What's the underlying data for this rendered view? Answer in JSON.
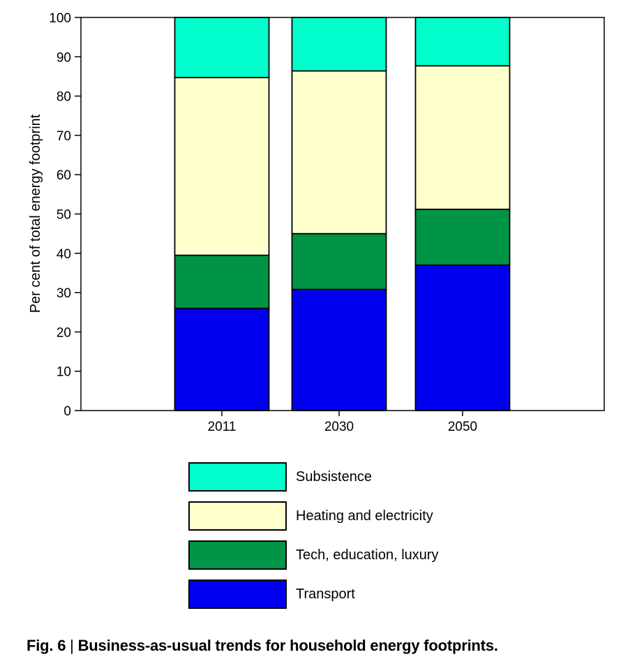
{
  "chart_data": {
    "type": "bar",
    "stacked": true,
    "categories": [
      "2011",
      "2030",
      "2050"
    ],
    "series": [
      {
        "name": "Transport",
        "color": "#0000ee",
        "values": [
          26,
          30.8,
          37
        ]
      },
      {
        "name": "Tech, education, luxury",
        "color": "#009446",
        "values": [
          13.5,
          14.2,
          14.2
        ]
      },
      {
        "name": "Heating and electricity",
        "color": "#ffffcc",
        "values": [
          45.2,
          41.4,
          36.5
        ]
      },
      {
        "name": "Subsistence",
        "color": "#00ffcc",
        "values": [
          15.3,
          13.6,
          12.3
        ]
      }
    ],
    "ylabel": "Per cent of total energy footprint",
    "xlabel": "",
    "ylim": [
      0,
      100
    ],
    "yticks": [
      "0",
      "10",
      "20",
      "30",
      "40",
      "50",
      "60",
      "70",
      "80",
      "90",
      "100"
    ],
    "legend_position": "bottom"
  },
  "legend": {
    "items": [
      {
        "label": "Subsistence",
        "color": "#00ffcc"
      },
      {
        "label": "Heating and electricity",
        "color": "#ffffcc"
      },
      {
        "label": "Tech, education, luxury",
        "color": "#009446"
      },
      {
        "label": "Transport",
        "color": "#0000ee"
      }
    ]
  },
  "caption": {
    "fig": "Fig. 6",
    "sep": "|",
    "text": "Business-as-usual trends for household energy footprints."
  }
}
